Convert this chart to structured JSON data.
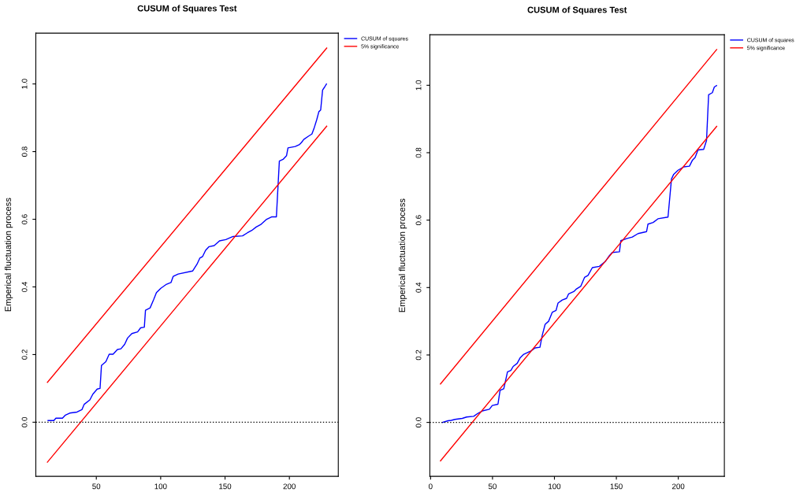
{
  "chart_data": [
    {
      "type": "line",
      "title": "CUSUM of Squares Test",
      "ylabel": "Emperical fluctuation process",
      "xlim": [
        3,
        238
      ],
      "ylim": [
        -0.16,
        1.15
      ],
      "xticks": [
        50,
        100,
        150,
        200
      ],
      "yticks": [
        {
          "value": 0,
          "label": "0.0"
        },
        {
          "value": 0.2,
          "label": "0.2"
        },
        {
          "value": 0.4,
          "label": "0.4"
        },
        {
          "value": 0.6,
          "label": "0.6"
        },
        {
          "value": 0.8,
          "label": "0.8"
        },
        {
          "value": 1.0,
          "label": "1.0"
        }
      ],
      "grid": false,
      "legend": "top right",
      "line_style": "solid",
      "marker": "none",
      "series": [
        {
          "name": "CUSUM of squares",
          "color": "#0000ff",
          "x": [
            12.5,
            17,
            18.6,
            23.7,
            26,
            29.3,
            35,
            38.8,
            40.6,
            45,
            47.3,
            50.7,
            52.9,
            54,
            57.4,
            60,
            63,
            66.4,
            69.1,
            72,
            74.3,
            77.6,
            82.1,
            84.4,
            87.3,
            88.2,
            91.8,
            94.5,
            96.7,
            100.1,
            104.6,
            108,
            109.7,
            113.6,
            124.8,
            128.2,
            130.4,
            132.6,
            134.9,
            137.6,
            141.6,
            145.7,
            150.6,
            156.2,
            163.6,
            167.4,
            170.8,
            174.2,
            177.6,
            182,
            186.1,
            189.9,
            192.2,
            195.1,
            197.8,
            198.9,
            204.5,
            207.9,
            209.4,
            211.2,
            214.6,
            217.5,
            219.1,
            221.3,
            222.9,
            224.3,
            225.8,
            227.4,
            228.8
          ],
          "values": [
            0.005,
            0.005,
            0.012,
            0.012,
            0.021,
            0.027,
            0.03,
            0.037,
            0.053,
            0.066,
            0.083,
            0.098,
            0.1,
            0.168,
            0.179,
            0.201,
            0.201,
            0.215,
            0.217,
            0.23,
            0.249,
            0.262,
            0.267,
            0.279,
            0.281,
            0.331,
            0.338,
            0.362,
            0.383,
            0.396,
            0.408,
            0.413,
            0.431,
            0.438,
            0.447,
            0.467,
            0.485,
            0.49,
            0.508,
            0.519,
            0.522,
            0.536,
            0.54,
            0.549,
            0.551,
            0.56,
            0.567,
            0.577,
            0.584,
            0.599,
            0.607,
            0.607,
            0.772,
            0.777,
            0.788,
            0.811,
            0.815,
            0.821,
            0.827,
            0.836,
            0.845,
            0.852,
            0.868,
            0.895,
            0.918,
            0.923,
            0.982,
            0.991,
            1.0
          ]
        },
        {
          "name": "5% significance",
          "color": "#ff0000",
          "x": [
            12,
            229
          ],
          "values": [
            0.118,
            1.106
          ]
        },
        {
          "color": "#ff0000",
          "x": [
            12,
            229
          ],
          "values": [
            -0.118,
            0.875
          ]
        }
      ],
      "ref_lines": [
        {
          "axis": "y",
          "value": 0,
          "color": "#000000",
          "line_style": "dotted"
        }
      ]
    },
    {
      "type": "line",
      "title": "CUSUM of Squares Test",
      "ylabel": "Emperical fluctuation process",
      "xlim": [
        -0.6,
        237.2
      ],
      "ylim": [
        -0.16,
        1.15
      ],
      "xticks": [
        0,
        50,
        100,
        150,
        200
      ],
      "yticks": [
        {
          "value": 0,
          "label": "0.0"
        },
        {
          "value": 0.2,
          "label": "0.2"
        },
        {
          "value": 0.4,
          "label": "0.4"
        },
        {
          "value": 0.6,
          "label": "0.6"
        },
        {
          "value": 0.8,
          "label": "0.8"
        },
        {
          "value": 1.0,
          "label": "1.0"
        }
      ],
      "grid": false,
      "legend": "top right",
      "line_style": "solid",
      "marker": "none",
      "series": [
        {
          "name": "CUSUM of squares",
          "color": "#0000ff",
          "x": [
            9.5,
            14.1,
            16.7,
            19.8,
            25.6,
            29.1,
            34.8,
            38.3,
            41.8,
            47.5,
            49.8,
            54.4,
            56.1,
            59.1,
            62.1,
            64.8,
            66.7,
            69.9,
            72.2,
            75.2,
            81,
            84.4,
            88.3,
            90.2,
            92.5,
            95.3,
            98.3,
            101.3,
            102.9,
            106.3,
            109.8,
            111.4,
            115.6,
            117.5,
            121.3,
            124.3,
            127.1,
            130.6,
            136.3,
            141,
            144.4,
            146.7,
            152.5,
            153.6,
            158.2,
            162.9,
            167.5,
            174.4,
            175.5,
            179.7,
            183.6,
            191.7,
            194.5,
            196.3,
            199.8,
            204.4,
            209,
            211.3,
            213.6,
            215.9,
            220.5,
            222.8,
            224.5,
            227.5,
            229.1,
            230.9
          ],
          "values": [
            0.0,
            0.005,
            0.006,
            0.009,
            0.012,
            0.016,
            0.018,
            0.027,
            0.034,
            0.039,
            0.05,
            0.054,
            0.095,
            0.1,
            0.15,
            0.154,
            0.166,
            0.175,
            0.191,
            0.202,
            0.212,
            0.221,
            0.223,
            0.259,
            0.291,
            0.3,
            0.327,
            0.332,
            0.354,
            0.363,
            0.368,
            0.381,
            0.388,
            0.395,
            0.404,
            0.43,
            0.436,
            0.459,
            0.463,
            0.477,
            0.495,
            0.504,
            0.506,
            0.539,
            0.545,
            0.55,
            0.56,
            0.566,
            0.588,
            0.593,
            0.604,
            0.609,
            0.722,
            0.736,
            0.748,
            0.758,
            0.76,
            0.777,
            0.786,
            0.808,
            0.81,
            0.836,
            0.972,
            0.978,
            0.995,
            0.999
          ]
        },
        {
          "name": "5% significance",
          "color": "#ff0000",
          "x": [
            8,
            231
          ],
          "values": [
            0.114,
            1.106
          ]
        },
        {
          "color": "#ff0000",
          "x": [
            8,
            231
          ],
          "values": [
            -0.114,
            0.878
          ]
        }
      ],
      "ref_lines": [
        {
          "axis": "y",
          "value": 0,
          "color": "#000000",
          "line_style": "dotted"
        }
      ]
    }
  ]
}
